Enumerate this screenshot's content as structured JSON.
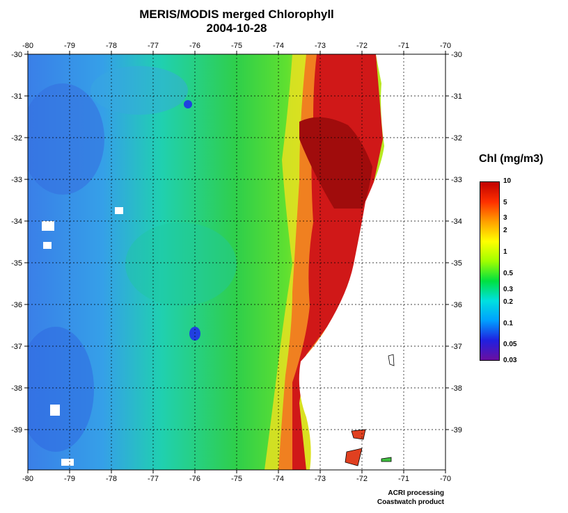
{
  "title": {
    "line1": "MERIS/MODIS merged Chlorophyll",
    "line2": "2004-10-28"
  },
  "map": {
    "lon_ticks": [
      "-80",
      "-79",
      "-78",
      "-77",
      "-76",
      "-75",
      "-74",
      "-73",
      "-72",
      "-71",
      "-70"
    ],
    "lat_ticks": [
      "-30",
      "-31",
      "-32",
      "-33",
      "-34",
      "-35",
      "-36",
      "-37",
      "-38",
      "-39"
    ],
    "land_color": "#ffffff",
    "ocean_low_color": "#3a82e6",
    "ocean_mid_color": "#2fcf4a",
    "coastal_high_color": "#c81414"
  },
  "colorbar": {
    "title": "Chl (mg/m3)",
    "labels": [
      "10",
      "5",
      "3",
      "2",
      "1",
      "0.5",
      "0.3",
      "0.2",
      "0.1",
      "0.05",
      "0.03"
    ],
    "colors": [
      "#6a0fa0",
      "#2020e0",
      "#00a0ff",
      "#00e0e0",
      "#00e040",
      "#a0ff00",
      "#ffff00",
      "#ffa000",
      "#ff3000",
      "#c00000"
    ]
  },
  "credits": {
    "line1": "ACRI processing",
    "line2": "Coastwatch product"
  }
}
